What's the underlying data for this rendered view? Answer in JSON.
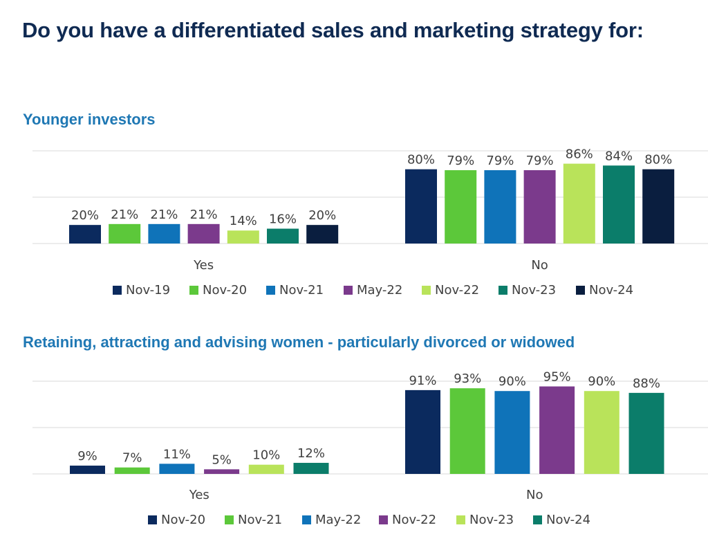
{
  "title": "Do you have a differentiated sales and marketing strategy for:",
  "colors": {
    "navy": "#0b2a5e",
    "green": "#5cc83a",
    "blue": "#0f73b9",
    "purple": "#7b3a8c",
    "lime": "#b9e35a",
    "teal": "#0b7d6a",
    "dark_navy": "#0a1e3f"
  },
  "chart_data": [
    {
      "type": "bar",
      "title": "Younger investors",
      "categories": [
        "Yes",
        "No"
      ],
      "series": [
        {
          "name": "Nov-19",
          "color": "#0b2a5e",
          "values": [
            20,
            80
          ]
        },
        {
          "name": "Nov-20",
          "color": "#5cc83a",
          "values": [
            21,
            79
          ]
        },
        {
          "name": "Nov-21",
          "color": "#0f73b9",
          "values": [
            21,
            79
          ]
        },
        {
          "name": "May-22",
          "color": "#7b3a8c",
          "values": [
            21,
            79
          ]
        },
        {
          "name": "Nov-22",
          "color": "#b9e35a",
          "values": [
            14,
            86
          ]
        },
        {
          "name": "Nov-23",
          "color": "#0b7d6a",
          "values": [
            16,
            84
          ]
        },
        {
          "name": "Nov-24",
          "color": "#0a1e3f",
          "values": [
            20,
            80
          ]
        }
      ],
      "value_suffix": "%",
      "ylim": [
        0,
        100
      ],
      "grid": true,
      "legend": "bottom"
    },
    {
      "type": "bar",
      "title": "Retaining, attracting and advising women - particularly divorced or widowed",
      "categories": [
        "Yes",
        "No"
      ],
      "series": [
        {
          "name": "Nov-20",
          "color": "#0b2a5e",
          "values": [
            9,
            91
          ]
        },
        {
          "name": "Nov-21",
          "color": "#5cc83a",
          "values": [
            7,
            93
          ]
        },
        {
          "name": "May-22",
          "color": "#0f73b9",
          "values": [
            11,
            90
          ]
        },
        {
          "name": "Nov-22",
          "color": "#7b3a8c",
          "values": [
            5,
            95
          ]
        },
        {
          "name": "Nov-23",
          "color": "#b9e35a",
          "values": [
            10,
            90
          ]
        },
        {
          "name": "Nov-24",
          "color": "#0b7d6a",
          "values": [
            12,
            88
          ]
        }
      ],
      "value_suffix": "%",
      "ylim": [
        0,
        100
      ],
      "grid": true,
      "legend": "bottom"
    }
  ]
}
